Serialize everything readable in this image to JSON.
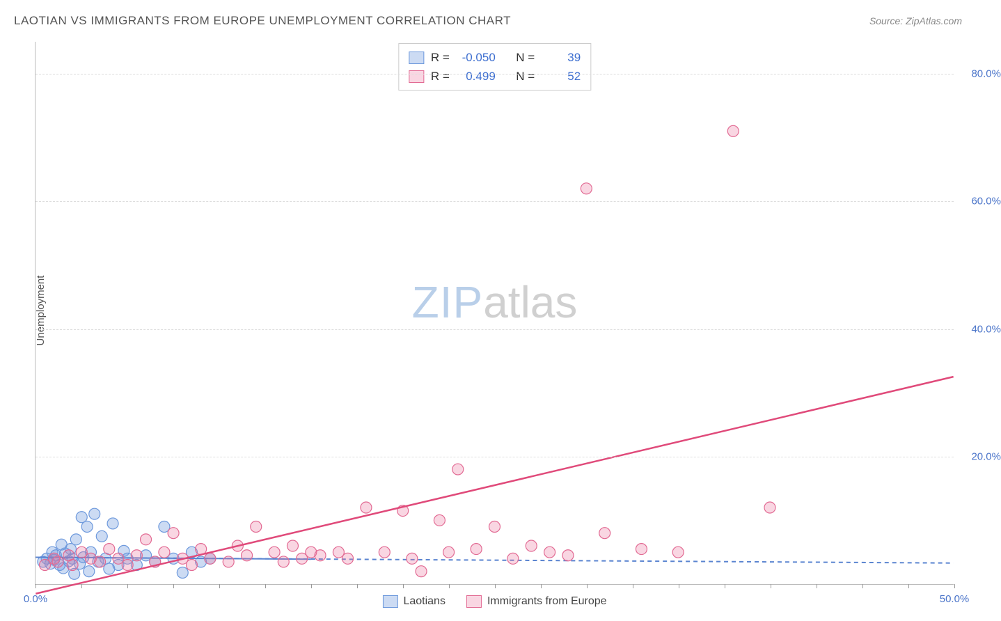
{
  "title": "LAOTIAN VS IMMIGRANTS FROM EUROPE UNEMPLOYMENT CORRELATION CHART",
  "source_prefix": "Source: ",
  "source_name": "ZipAtlas.com",
  "ylabel": "Unemployment",
  "watermark_a": "ZIP",
  "watermark_b": "atlas",
  "chart": {
    "type": "scatter",
    "x_range": [
      0,
      50
    ],
    "y_range": [
      0,
      85
    ],
    "x_ticks_minor_step": 2.5,
    "x_tick_labels": [
      {
        "x": 0,
        "label": "0.0%"
      },
      {
        "x": 50,
        "label": "50.0%"
      }
    ],
    "y_gridlines": [
      20,
      40,
      60,
      80
    ],
    "y_tick_labels": [
      {
        "y": 20,
        "label": "20.0%"
      },
      {
        "y": 40,
        "label": "40.0%"
      },
      {
        "y": 60,
        "label": "60.0%"
      },
      {
        "y": 80,
        "label": "80.0%"
      }
    ],
    "background_color": "#ffffff",
    "grid_color": "#dddddd",
    "axis_color": "#bbbbbb",
    "label_color": "#4a74c9",
    "marker_radius": 8,
    "series": [
      {
        "name": "Laotians",
        "fill_color": "rgba(108,152,220,0.35)",
        "stroke_color": "#6c98dc",
        "trend": {
          "x1": 0,
          "y1": 4.2,
          "x2": 50,
          "y2": 3.3,
          "color": "#5a84d0",
          "dash": "6,5",
          "width": 2
        },
        "solid_trend": {
          "x1": 0,
          "y1": 4.2,
          "x2": 15,
          "y2": 3.9,
          "color": "#5a84d0",
          "width": 2
        },
        "R_label": "R =",
        "R": "-0.050",
        "N_label": "N =",
        "N": "39",
        "points": [
          [
            0.4,
            3.5
          ],
          [
            0.6,
            4.0
          ],
          [
            0.8,
            3.2
          ],
          [
            0.9,
            5.0
          ],
          [
            1.0,
            3.8
          ],
          [
            1.1,
            4.5
          ],
          [
            1.3,
            3.0
          ],
          [
            1.4,
            6.2
          ],
          [
            1.5,
            2.5
          ],
          [
            1.6,
            4.8
          ],
          [
            1.8,
            3.6
          ],
          [
            1.9,
            5.5
          ],
          [
            2.0,
            4.0
          ],
          [
            2.1,
            1.6
          ],
          [
            2.2,
            7.0
          ],
          [
            2.4,
            3.2
          ],
          [
            2.5,
            10.5
          ],
          [
            2.6,
            4.2
          ],
          [
            2.8,
            9.0
          ],
          [
            2.9,
            2.0
          ],
          [
            3.0,
            5.0
          ],
          [
            3.2,
            11.0
          ],
          [
            3.4,
            3.5
          ],
          [
            3.6,
            7.5
          ],
          [
            3.8,
            4.0
          ],
          [
            4.0,
            2.4
          ],
          [
            4.2,
            9.5
          ],
          [
            4.5,
            3.0
          ],
          [
            4.8,
            5.2
          ],
          [
            5.0,
            4.0
          ],
          [
            5.5,
            3.0
          ],
          [
            6.0,
            4.5
          ],
          [
            6.5,
            3.5
          ],
          [
            7.0,
            9.0
          ],
          [
            7.5,
            4.0
          ],
          [
            8.0,
            1.8
          ],
          [
            8.5,
            5.0
          ],
          [
            9.0,
            3.5
          ],
          [
            9.5,
            4.0
          ]
        ]
      },
      {
        "name": "Immigrants from Europe",
        "fill_color": "rgba(235,120,160,0.30)",
        "stroke_color": "#e26a93",
        "trend": {
          "x1": 0,
          "y1": -1.5,
          "x2": 50,
          "y2": 32.5,
          "color": "#e04a7a",
          "dash": "",
          "width": 2.5
        },
        "R_label": "R =",
        "R": "0.499",
        "N_label": "N =",
        "N": "52",
        "points": [
          [
            0.5,
            3.0
          ],
          [
            1.0,
            4.0
          ],
          [
            1.2,
            3.5
          ],
          [
            1.8,
            4.5
          ],
          [
            2.0,
            3.0
          ],
          [
            2.5,
            5.0
          ],
          [
            3.0,
            4.0
          ],
          [
            3.5,
            3.5
          ],
          [
            4.0,
            5.5
          ],
          [
            4.5,
            4.0
          ],
          [
            5.0,
            3.0
          ],
          [
            5.5,
            4.5
          ],
          [
            6.0,
            7.0
          ],
          [
            6.5,
            3.5
          ],
          [
            7.0,
            5.0
          ],
          [
            7.5,
            8.0
          ],
          [
            8.0,
            4.0
          ],
          [
            8.5,
            3.0
          ],
          [
            9.0,
            5.5
          ],
          [
            9.5,
            4.0
          ],
          [
            10.5,
            3.5
          ],
          [
            11.0,
            6.0
          ],
          [
            11.5,
            4.5
          ],
          [
            12.0,
            9.0
          ],
          [
            13.0,
            5.0
          ],
          [
            13.5,
            3.5
          ],
          [
            14.0,
            6.0
          ],
          [
            14.5,
            4.0
          ],
          [
            15.0,
            5.0
          ],
          [
            15.5,
            4.5
          ],
          [
            16.5,
            5.0
          ],
          [
            17.0,
            4.0
          ],
          [
            18.0,
            12.0
          ],
          [
            19.0,
            5.0
          ],
          [
            20.0,
            11.5
          ],
          [
            20.5,
            4.0
          ],
          [
            21.0,
            2.0
          ],
          [
            22.0,
            10.0
          ],
          [
            22.5,
            5.0
          ],
          [
            23.0,
            18.0
          ],
          [
            24.0,
            5.5
          ],
          [
            25.0,
            9.0
          ],
          [
            26.0,
            4.0
          ],
          [
            27.0,
            6.0
          ],
          [
            28.0,
            5.0
          ],
          [
            29.0,
            4.5
          ],
          [
            30.0,
            62.0
          ],
          [
            31.0,
            8.0
          ],
          [
            33.0,
            5.5
          ],
          [
            35.0,
            5.0
          ],
          [
            38.0,
            71.0
          ],
          [
            40.0,
            12.0
          ]
        ]
      }
    ],
    "legend_bottom": [
      {
        "swatch": "blue",
        "label": "Laotians"
      },
      {
        "swatch": "pink",
        "label": "Immigrants from Europe"
      }
    ]
  }
}
